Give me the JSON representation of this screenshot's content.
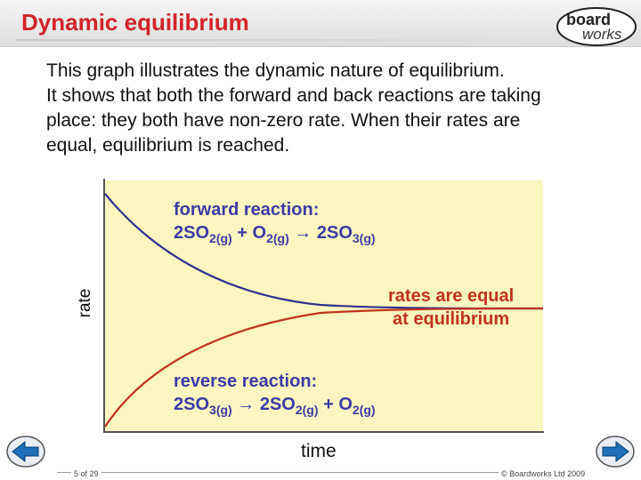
{
  "slide": {
    "title": "Dynamic equilibrium",
    "intro_lines": [
      "This graph illustrates the dynamic nature of equilibrium.",
      "It shows that both the forward and back reactions are taking",
      "place: they both have non-zero rate. When their rates are",
      "equal, equilibrium is reached."
    ]
  },
  "logo": {
    "line1": "board",
    "line2": "works"
  },
  "chart": {
    "forward": {
      "line1": "forward reaction:",
      "r1": "2SO",
      "r1_sub": "2(g)",
      "plus": " + ",
      "r2": "O",
      "r2_sub": "2(g)",
      "arrow": " → ",
      "p1": "2SO",
      "p1_sub": "3(g)"
    },
    "equal": {
      "line1": "rates are equal",
      "line2": "at equilibrium"
    },
    "reverse": {
      "line1": "reverse reaction:",
      "r1": "2SO",
      "r1_sub": "3(g)",
      "arrow": " → ",
      "p1": "2SO",
      "p1_sub": "2(g)",
      "plus": " + ",
      "p2": "O",
      "p2_sub": "2(g)"
    }
  },
  "chart_data": {
    "type": "line",
    "title": "",
    "xlabel": "time",
    "ylabel": "rate",
    "grid": false,
    "series": [
      {
        "name": "forward reaction",
        "color": "#2e3192"
      },
      {
        "name": "reverse reaction",
        "color": "#c0341c"
      }
    ]
  },
  "footer": {
    "page": "5 of 29",
    "copyright": "© Boardworks Ltd 2009"
  },
  "colors": {
    "title": "#d2232a",
    "forward": "#2e3192",
    "reverse": "#c0341c",
    "chart_bg": "#fbf5bf",
    "nav": "#1f6fb8"
  }
}
